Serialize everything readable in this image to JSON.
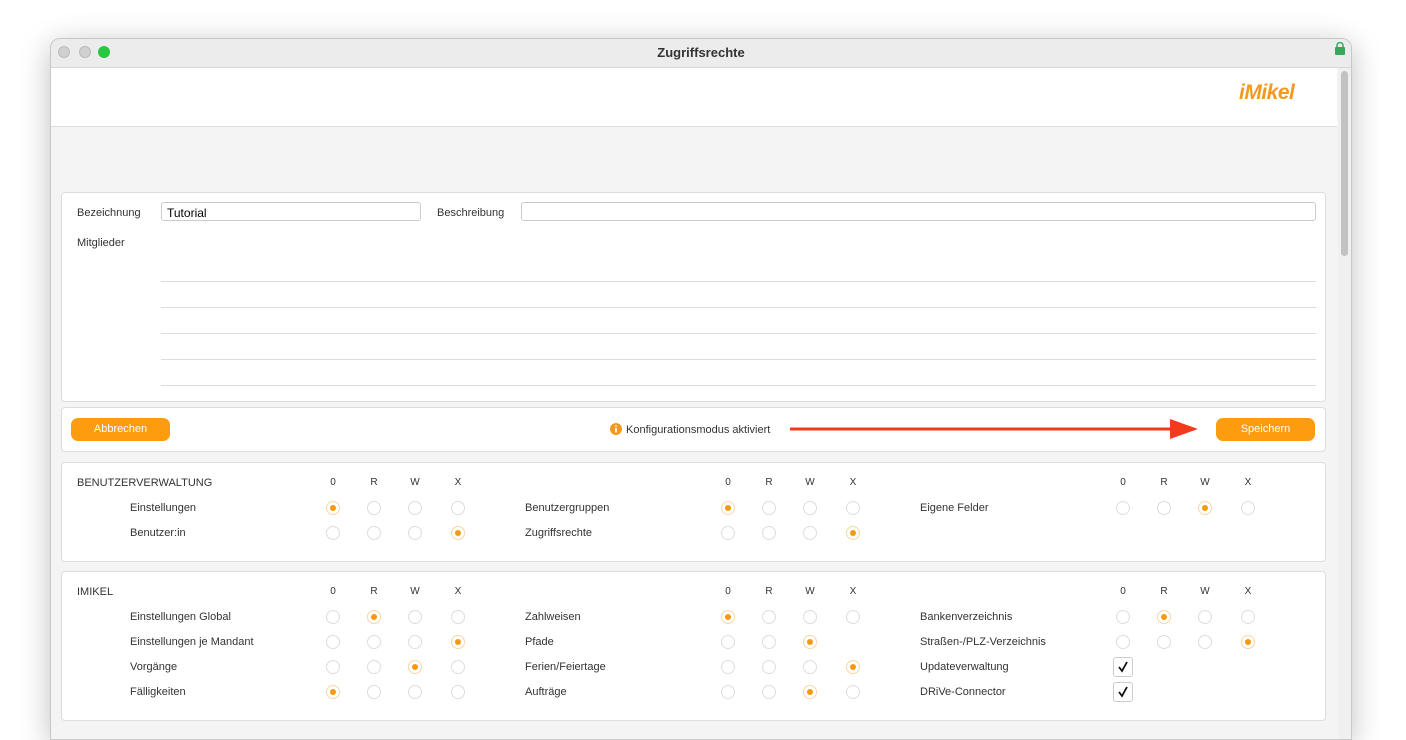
{
  "window": {
    "title": "Zugriffsrechte",
    "logo": "iMikel"
  },
  "form": {
    "name_label": "Bezeichnung",
    "name_value": "Tutorial",
    "description_label": "Beschreibung",
    "description_value": "",
    "members_label": "Mitglieder"
  },
  "toolbar": {
    "cancel": "Abbrechen",
    "status": "Konfigurationsmodus aktiviert",
    "save": "Speichern"
  },
  "columns": [
    "0",
    "R",
    "W",
    "X"
  ],
  "sections": [
    {
      "title": "BENUTZERVERWALTUNG",
      "rows": [
        [
          {
            "label": "Einstellungen",
            "access": "0"
          },
          {
            "label": "Benutzergruppen",
            "access": "0"
          },
          {
            "label": "Eigene Felder",
            "access": "W"
          }
        ],
        [
          {
            "label": "Benutzer:in",
            "access": "X"
          },
          {
            "label": "Zugriffsrechte",
            "access": "X"
          },
          null
        ]
      ]
    },
    {
      "title": "IMIKEL",
      "rows": [
        [
          {
            "label": "Einstellungen Global",
            "access": "R"
          },
          {
            "label": "Zahlweisen",
            "access": "0"
          },
          {
            "label": "Bankenverzeichnis",
            "access": "R"
          }
        ],
        [
          {
            "label": "Einstellungen je Mandant",
            "access": "X"
          },
          {
            "label": "Pfade",
            "access": "W",
            "options": [
              "0",
              "R",
              "W"
            ]
          },
          {
            "label": "Straßen-/PLZ-Verzeichnis",
            "access": "X"
          }
        ],
        [
          {
            "label": "Vorgänge",
            "access": "W"
          },
          {
            "label": "Ferien/Feiertage",
            "access": "X"
          },
          {
            "label": "Updateverwaltung",
            "checked": true
          }
        ],
        [
          {
            "label": "Fälligkeiten",
            "access": "0"
          },
          {
            "label": "Aufträge",
            "access": "W"
          },
          {
            "label": "DRiVe-Connector",
            "checked": true
          }
        ]
      ]
    }
  ]
}
